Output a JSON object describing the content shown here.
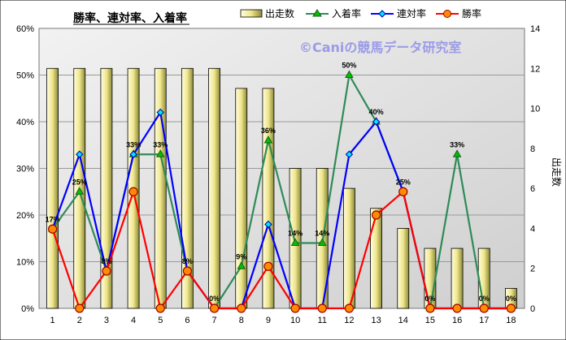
{
  "chart_data": {
    "type": "bar+line",
    "title": "勝率、連対率、入着率",
    "watermark": "©Caniの競馬データ研究室",
    "categories": [
      "1",
      "2",
      "3",
      "4",
      "5",
      "6",
      "7",
      "8",
      "9",
      "10",
      "11",
      "12",
      "13",
      "14",
      "15",
      "16",
      "17",
      "18"
    ],
    "y_left": {
      "ylim": [
        0,
        60
      ],
      "ticks": [
        "0%",
        "10%",
        "20%",
        "30%",
        "40%",
        "50%",
        "60%"
      ]
    },
    "y_right": {
      "ylim": [
        0,
        14
      ],
      "ticks": [
        "0",
        "2",
        "4",
        "6",
        "8",
        "10",
        "12",
        "14"
      ],
      "label": "出走数"
    },
    "grid": true,
    "legend_position": "top",
    "bar_series": {
      "name": "出走数",
      "axis": "right",
      "color": "#f0e68c",
      "values": [
        12,
        12,
        12,
        12,
        12,
        12,
        12,
        11,
        11,
        7,
        7,
        6,
        5,
        4,
        3,
        3,
        3,
        1
      ]
    },
    "line_series": [
      {
        "name": "入着率",
        "color": "#2e8b57",
        "marker": "triangle",
        "labeled": true,
        "values": [
          17,
          25,
          8,
          33,
          33,
          8,
          0,
          9,
          36,
          14,
          14,
          50,
          40,
          25,
          0,
          33,
          0,
          0
        ],
        "labels": [
          "17%",
          "25%",
          "8%",
          "33%",
          "33%",
          "8%",
          "0%",
          "9%",
          "36%",
          "14%",
          "14%",
          "50%",
          "40%",
          "25%",
          "0%",
          "33%",
          "0%",
          "0%"
        ]
      },
      {
        "name": "連対率",
        "color": "#0000ff",
        "marker": "diamond",
        "labeled": false,
        "values": [
          17,
          33,
          8,
          33,
          42,
          8,
          0,
          0,
          18,
          0,
          0,
          33,
          40,
          25,
          0,
          0,
          0,
          0
        ]
      },
      {
        "name": "勝率",
        "color": "#ff0000",
        "marker": "circle",
        "labeled": false,
        "values": [
          17,
          0,
          8,
          25,
          0,
          8,
          0,
          0,
          9,
          0,
          0,
          0,
          20,
          25,
          0,
          0,
          0,
          0
        ]
      }
    ]
  },
  "legend": {
    "items": [
      {
        "label": "出走数",
        "symbol": "bar"
      },
      {
        "label": "入着率",
        "symbol": "triangle"
      },
      {
        "label": "連対率",
        "symbol": "diamond"
      },
      {
        "label": "勝率",
        "symbol": "circle"
      }
    ]
  }
}
